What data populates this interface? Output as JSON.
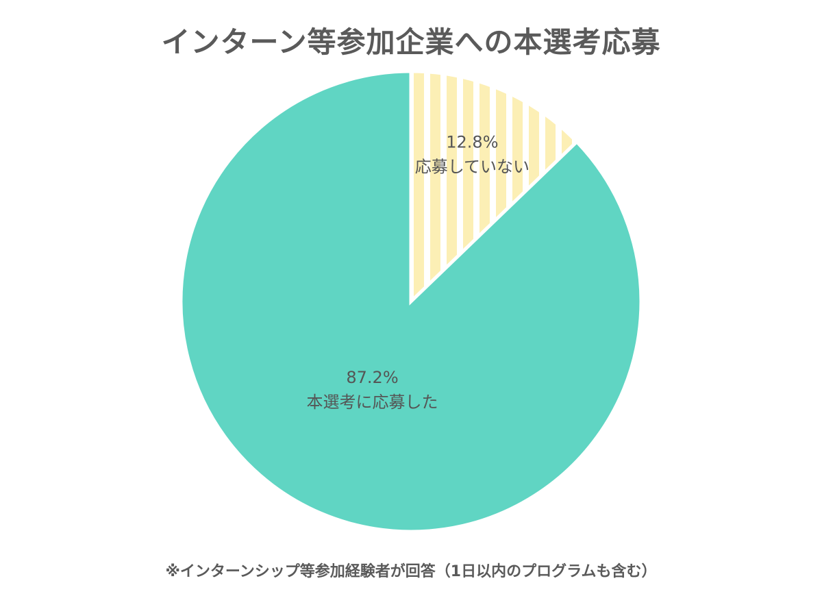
{
  "chart_data": {
    "type": "pie",
    "title": "インターン等参加企業への本選考応募",
    "slices": [
      {
        "label": "応募していない",
        "value": 12.8,
        "value_label": "12.8%",
        "color": "#fcefb5",
        "pattern": "vertical-stripes"
      },
      {
        "label": "本選考に応募した",
        "value": 87.2,
        "value_label": "87.2%",
        "color": "#60d5c3",
        "pattern": "solid"
      }
    ],
    "start_position": "12 o'clock",
    "direction": "clockwise",
    "footnote": "※インターンシップ等参加経験者が回答（1日以内のプログラムも含む）"
  }
}
